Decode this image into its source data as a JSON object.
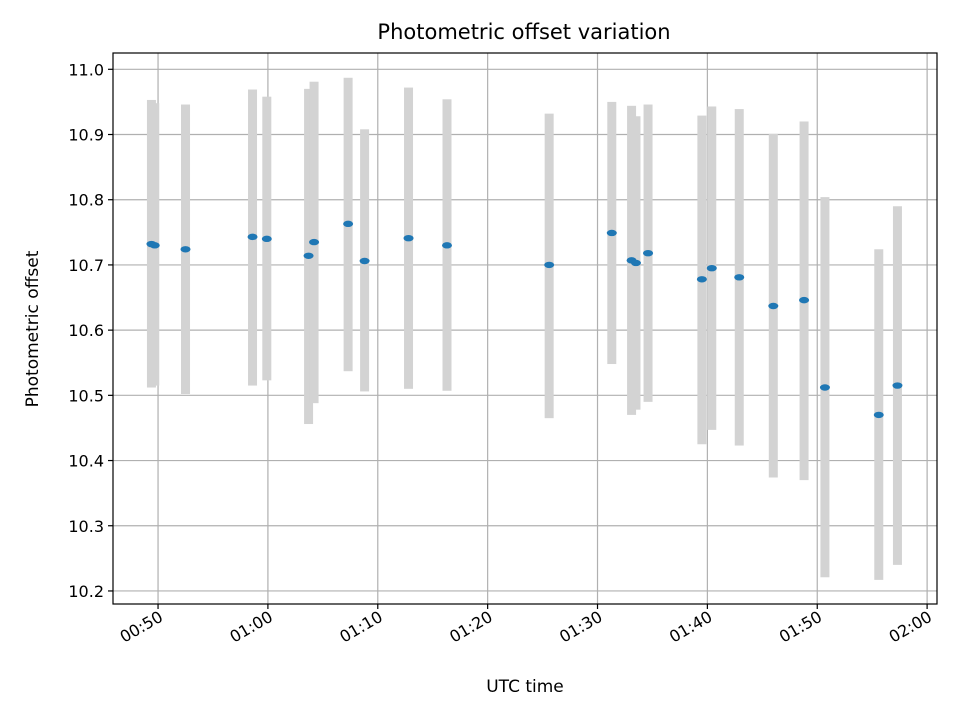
{
  "chart_data": {
    "type": "scatter",
    "title": "Photometric offset variation",
    "xlabel": "UTC time",
    "ylabel": "Photometric offset",
    "xlim": [
      "00:45.9",
      "02:00.9"
    ],
    "ylim": [
      10.18,
      11.025
    ],
    "grid": true,
    "x_ticks": [
      "00:50",
      "01:00",
      "01:10",
      "01:20",
      "01:30",
      "01:40",
      "01:50",
      "02:00"
    ],
    "y_ticks": [
      "10.2",
      "10.3",
      "10.4",
      "10.5",
      "10.6",
      "10.7",
      "10.8",
      "10.9",
      "11.0"
    ],
    "colors": {
      "point": "#1f77b4",
      "errorbar": "#d3d3d3"
    },
    "points": [
      {
        "x": "00:49:24",
        "y": 10.732,
        "low": 10.512,
        "high": 10.953
      },
      {
        "x": "00:49:42",
        "y": 10.73,
        "low": 10.515,
        "high": 10.948
      },
      {
        "x": "00:52:30",
        "y": 10.724,
        "low": 10.502,
        "high": 10.946
      },
      {
        "x": "00:58:36",
        "y": 10.743,
        "low": 10.515,
        "high": 10.969
      },
      {
        "x": "00:59:54",
        "y": 10.74,
        "low": 10.523,
        "high": 10.958
      },
      {
        "x": "01:03:42",
        "y": 10.714,
        "low": 10.456,
        "high": 10.97
      },
      {
        "x": "01:04:12",
        "y": 10.735,
        "low": 10.488,
        "high": 10.981
      },
      {
        "x": "01:07:18",
        "y": 10.763,
        "low": 10.537,
        "high": 10.987
      },
      {
        "x": "01:08:48",
        "y": 10.706,
        "low": 10.506,
        "high": 10.908
      },
      {
        "x": "01:12:48",
        "y": 10.741,
        "low": 10.51,
        "high": 10.972
      },
      {
        "x": "01:16:18",
        "y": 10.73,
        "low": 10.507,
        "high": 10.954
      },
      {
        "x": "01:25:36",
        "y": 10.7,
        "low": 10.465,
        "high": 10.932
      },
      {
        "x": "01:31:18",
        "y": 10.749,
        "low": 10.548,
        "high": 10.95
      },
      {
        "x": "01:33:06",
        "y": 10.707,
        "low": 10.47,
        "high": 10.944
      },
      {
        "x": "01:33:30",
        "y": 10.703,
        "low": 10.478,
        "high": 10.928
      },
      {
        "x": "01:34:36",
        "y": 10.718,
        "low": 10.49,
        "high": 10.946
      },
      {
        "x": "01:39:30",
        "y": 10.678,
        "low": 10.425,
        "high": 10.929
      },
      {
        "x": "01:40:24",
        "y": 10.695,
        "low": 10.447,
        "high": 10.943
      },
      {
        "x": "01:42:54",
        "y": 10.681,
        "low": 10.423,
        "high": 10.939
      },
      {
        "x": "01:46:00",
        "y": 10.637,
        "low": 10.374,
        "high": 10.901
      },
      {
        "x": "01:48:48",
        "y": 10.646,
        "low": 10.37,
        "high": 10.92
      },
      {
        "x": "01:50:42",
        "y": 10.512,
        "low": 10.221,
        "high": 10.804
      },
      {
        "x": "01:55:36",
        "y": 10.47,
        "low": 10.217,
        "high": 10.724
      },
      {
        "x": "01:57:18",
        "y": 10.515,
        "low": 10.24,
        "high": 10.79
      }
    ]
  }
}
